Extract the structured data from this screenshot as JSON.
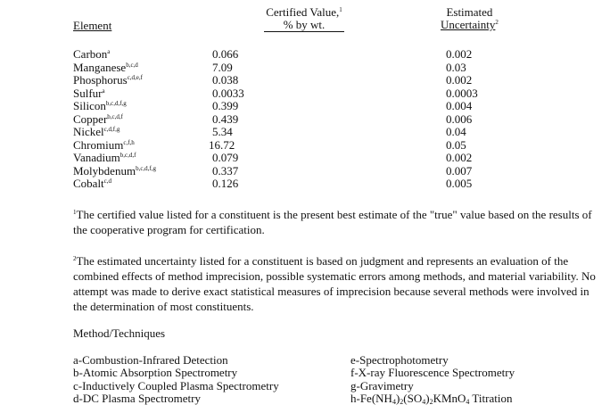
{
  "headers": {
    "element": "Element",
    "certified_line1": "Certified Value,",
    "certified_sup": "1",
    "certified_line2": "% by wt.",
    "uncertainty_line1": "Estimated",
    "uncertainty_line2": "Uncertainty",
    "uncertainty_sup": "2"
  },
  "rows": [
    {
      "element": "Carbon",
      "sup": "a",
      "value": "0.066",
      "uncertainty": "0.002"
    },
    {
      "element": "Manganese",
      "sup": "b,c,d",
      "value": "7.09",
      "uncertainty": "0.03"
    },
    {
      "element": "Phosphorus",
      "sup": "c,d,e,f",
      "value": "0.038",
      "uncertainty": "0.002"
    },
    {
      "element": "Sulfur",
      "sup": "a",
      "value": "0.0033",
      "uncertainty": "0.0003"
    },
    {
      "element": "Silicon",
      "sup": "b,c,d,f,g",
      "value": "0.399",
      "uncertainty": "0.004"
    },
    {
      "element": "Copper",
      "sup": "b,c,d,f",
      "value": "0.439",
      "uncertainty": "0.006"
    },
    {
      "element": "Nickel",
      "sup": "c,d,f,g",
      "value": "5.34",
      "uncertainty": "0.04"
    },
    {
      "element": "Chromium",
      "sup": "c,f,h",
      "value": "16.72",
      "uncertainty": "0.05"
    },
    {
      "element": "Vanadium",
      "sup": "b,c,d,f",
      "value": "0.079",
      "uncertainty": "0.002"
    },
    {
      "element": "Molybdenum",
      "sup": "b,c,d,f,g",
      "value": "0.337",
      "uncertainty": "0.007"
    },
    {
      "element": "Cobalt",
      "sup": "c,d",
      "value": "0.126",
      "uncertainty": "0.005"
    }
  ],
  "notes": [
    {
      "sup": "1",
      "text": "The certified value listed for a constituent is the present best estimate of the \"true\" value based on the results of the cooperative program for certification."
    },
    {
      "sup": "2",
      "text": "The estimated uncertainty listed for a constituent is based on judgment and represents an evaluation of the combined effects of method imprecision, possible systematic errors among methods, and material variability. No attempt was made to derive exact statistical measures of imprecision because several methods were involved in the determination of most constituents."
    }
  ],
  "methods_title": "Method/Techniques",
  "methods": [
    "a-Combustion-Infrared Detection",
    "b-Atomic Absorption Spectrometry",
    "c-Inductively Coupled Plasma Spectrometry",
    "d-DC Plasma Spectrometry",
    "e-Spectrophotometry",
    "f-X-ray Fluorescence Spectrometry",
    "g-Gravimetry",
    "h-Fe(NH4)2(SO4)2KMnO4 Titration"
  ]
}
